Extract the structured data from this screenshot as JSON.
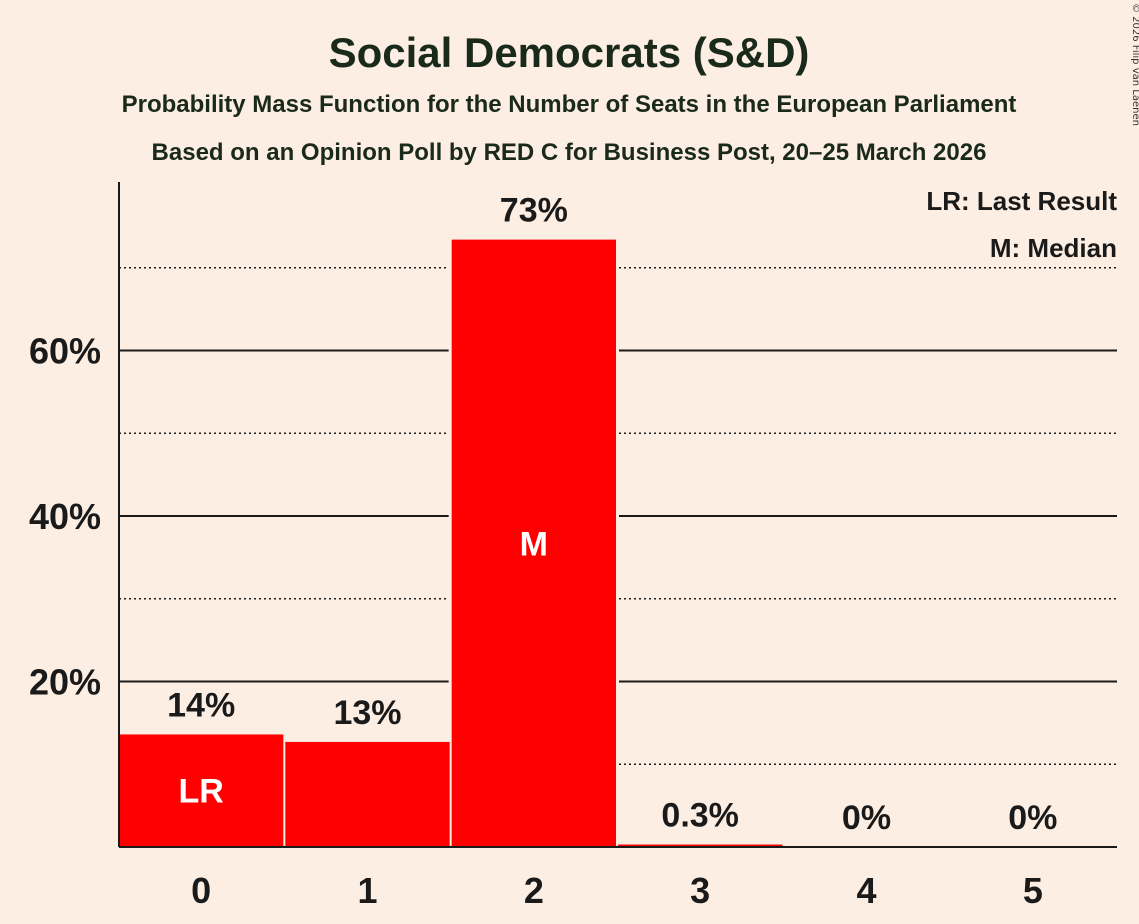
{
  "chart_data": {
    "type": "bar",
    "title": "Social Democrats (S&D)",
    "subtitle_1": "Probability Mass Function for the Number of Seats in the European Parliament",
    "subtitle_2": "Based on an Opinion Poll by RED C for Business Post, 20–25 March 2026",
    "copyright": "© 2026 Filip van Laenen",
    "xlabel": "",
    "ylabel": "",
    "categories": [
      "0",
      "1",
      "2",
      "3",
      "4",
      "5"
    ],
    "values": [
      13.6,
      12.7,
      73.4,
      0.3,
      0,
      0
    ],
    "value_labels": [
      "14%",
      "13%",
      "73%",
      "0.3%",
      "0%",
      "0%"
    ],
    "bar_markers": [
      "LR",
      "",
      "M",
      "",
      "",
      ""
    ],
    "ylim": [
      0,
      80
    ],
    "y_major_ticks": [
      20,
      40,
      60
    ],
    "y_major_labels": [
      "20%",
      "40%",
      "60%"
    ],
    "y_minor_ticks": [
      10,
      30,
      50,
      70
    ],
    "legend": [
      "LR: Last Result",
      "M: Median"
    ],
    "legend_position": "top-right",
    "colors": {
      "bar": "#ff0000",
      "background": "#fdeee3",
      "text": "#1a1a1a",
      "marker_text": "#ffffff"
    }
  }
}
